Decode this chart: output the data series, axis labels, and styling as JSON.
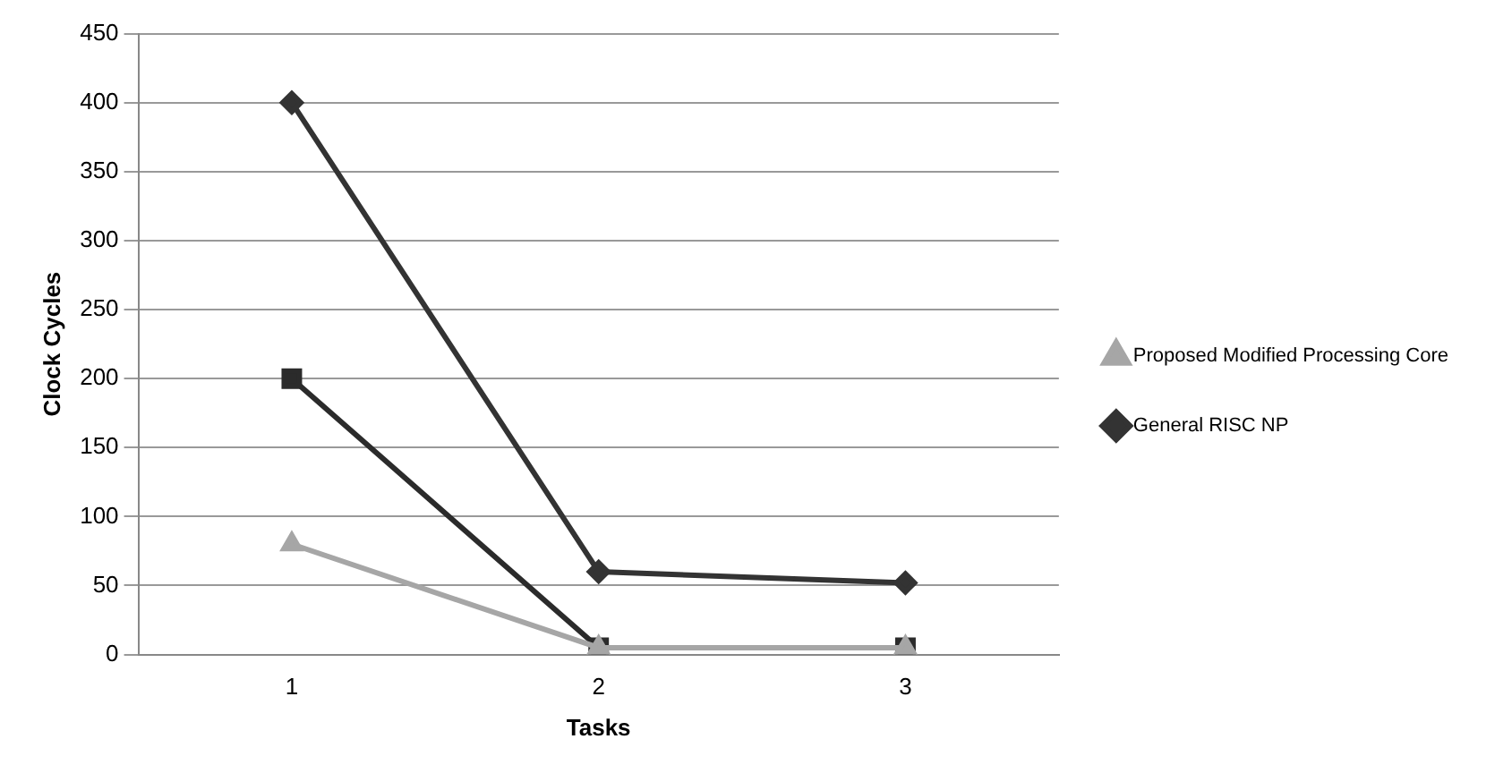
{
  "chart_data": {
    "type": "line",
    "xlabel": "Tasks",
    "ylabel": "Clock Cycles",
    "categories": [
      "1",
      "2",
      "3"
    ],
    "series": [
      {
        "name": "General RISC NP",
        "color": "#333333",
        "marker": "diamond",
        "values": [
          400,
          60,
          52
        ]
      },
      {
        "color": "#2b2b2b",
        "marker": "square",
        "values": [
          200,
          5,
          5
        ]
      },
      {
        "name": "Proposed Modified Processing Core",
        "color": "#a6a6a6",
        "marker": "triangle",
        "values": [
          80,
          5,
          5
        ]
      }
    ],
    "ylim": [
      0,
      450
    ],
    "yticks": [
      0,
      50,
      100,
      150,
      200,
      250,
      300,
      350,
      400,
      450
    ],
    "grid": "y",
    "legend": "right",
    "line_style": "solid"
  }
}
